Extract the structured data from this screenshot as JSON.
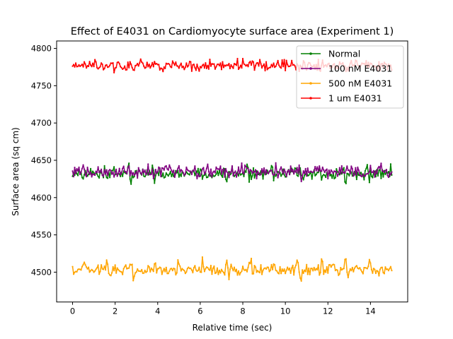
{
  "chart_data": {
    "type": "line",
    "title": "Effect of E4031 on Cardiomyocyte surface area (Experiment 1)",
    "xlabel": "Relative time (sec)",
    "ylabel": "Surface area (sq cm)",
    "xlim": [
      -0.75,
      15.75
    ],
    "ylim": [
      4460,
      4810
    ],
    "xticks": [
      0,
      2,
      4,
      6,
      8,
      10,
      12,
      14
    ],
    "yticks": [
      4500,
      4550,
      4600,
      4650,
      4700,
      4750,
      4800
    ],
    "grid": false,
    "legend_position": "top-right",
    "x_range": [
      0,
      15
    ],
    "sampling_step": 0.05,
    "series": [
      {
        "name": "Normal",
        "color": "#008000",
        "baseline": 4632,
        "noise": 5,
        "beat_period": 1.12,
        "beat_phase": 0.35,
        "beat_amplitude": 38,
        "beat_width": 0.05
      },
      {
        "name": "100 nM E4031",
        "color": "#800080",
        "baseline": 4635,
        "noise": 6,
        "beat_period": 0.55,
        "beat_phase": 0.15,
        "beat_amplitude": 10,
        "beat_width": 0.06
      },
      {
        "name": "500 nM E4031",
        "color": "#ffa500",
        "baseline": 4503,
        "noise": 5,
        "beat_period": 1.12,
        "beat_phase": 0.45,
        "beat_amplitude": 42,
        "beat_width": 0.06
      },
      {
        "name": "1 um E4031",
        "color": "#ff0000",
        "baseline": 4777,
        "noise": 5,
        "beat_period": 1.12,
        "beat_phase": 0.9,
        "beat_amplitude": 8,
        "beat_width": 0.08
      }
    ]
  }
}
